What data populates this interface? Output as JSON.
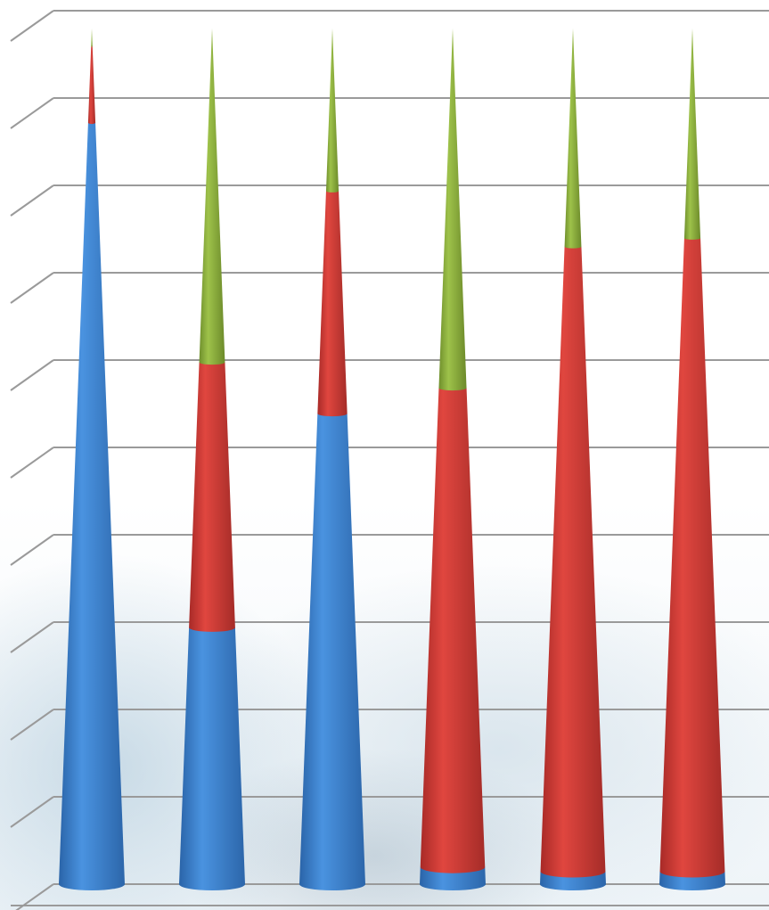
{
  "chart_data": {
    "type": "bar",
    "subtype": "stacked-percent-3d-cone",
    "categories": [
      "",
      "",
      "",
      "",
      "",
      ""
    ],
    "series": [
      {
        "color": "#3a7fcf",
        "values": [
          89,
          30,
          55,
          2,
          1.5,
          1.5
        ]
      },
      {
        "color": "#c73a35",
        "values": [
          9,
          31,
          26,
          56,
          73,
          74
        ]
      },
      {
        "color": "#8aac3a",
        "values": [
          2,
          39,
          19,
          42,
          25.5,
          24.5
        ]
      }
    ],
    "ylim": [
      0,
      100
    ],
    "gridlines": 10,
    "grid": true,
    "legend": "none"
  }
}
